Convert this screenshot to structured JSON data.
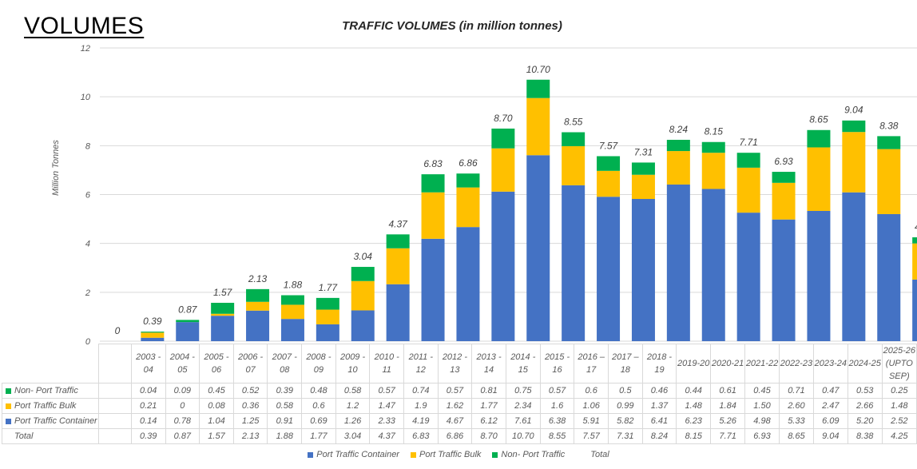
{
  "heading": "VOLUMES",
  "chart_data": {
    "type": "bar",
    "stacked": true,
    "title": "TRAFFIC VOLUMES (in million tonnes)",
    "ylabel": "Million Tonnes",
    "xlabel": "",
    "ylim": [
      0,
      12
    ],
    "yticks": [
      0,
      2,
      4,
      6,
      8,
      10,
      12
    ],
    "grid": true,
    "legend_position": "bottom",
    "categories": [
      "",
      "2003 - 04",
      "2004 - 05",
      "2005 - 06",
      "2006 - 07",
      "2007 - 08",
      "2008 - 09",
      "2009 - 10",
      "2010 - 11",
      "2011 - 12",
      "2012 - 13",
      "2013 - 14",
      "2014 - 15",
      "2015 - 16",
      "2016 – 17",
      "2017 – 18",
      "2018 - 19",
      "2019-20",
      "2020-21",
      "2021-22",
      "2022-23",
      "2023-24",
      "2024-25",
      "2025-26 (UPTO SEP)"
    ],
    "series": [
      {
        "name": "Port Traffic Container",
        "color": "#4472C4",
        "values": [
          null,
          0.14,
          0.78,
          1.04,
          1.25,
          0.91,
          0.69,
          1.26,
          2.33,
          4.19,
          4.67,
          6.12,
          7.61,
          6.38,
          5.91,
          5.82,
          6.41,
          6.23,
          5.26,
          4.98,
          5.33,
          6.09,
          5.2,
          2.52
        ],
        "labels": [
          "",
          "0.14",
          "0.78",
          "1.04",
          "1.25",
          "0.91",
          "0.69",
          "1.26",
          "2.33",
          "4.19",
          "4.67",
          "6.12",
          "7.61",
          "6.38",
          "5.91",
          "5.82",
          "6.41",
          "6.23",
          "5.26",
          "4.98",
          "5.33",
          "6.09",
          "5.20",
          "2.52"
        ]
      },
      {
        "name": "Port Traffic Bulk",
        "color": "#FFC000",
        "values": [
          null,
          0.21,
          0,
          0.08,
          0.36,
          0.58,
          0.6,
          1.2,
          1.47,
          1.9,
          1.62,
          1.77,
          2.34,
          1.6,
          1.06,
          0.99,
          1.37,
          1.48,
          1.84,
          1.5,
          2.6,
          2.47,
          2.66,
          1.48
        ],
        "labels": [
          "",
          "0.21",
          "0",
          "0.08",
          "0.36",
          "0.58",
          "0.6",
          "1.2",
          "1.47",
          "1.9",
          "1.62",
          "1.77",
          "2.34",
          "1.6",
          "1.06",
          "0.99",
          "1.37",
          "1.48",
          "1.84",
          "1.50",
          "2.60",
          "2.47",
          "2.66",
          "1.48"
        ]
      },
      {
        "name": "Non- Port Traffic",
        "color": "#00B050",
        "values": [
          null,
          0.04,
          0.09,
          0.45,
          0.52,
          0.39,
          0.48,
          0.58,
          0.57,
          0.74,
          0.57,
          0.81,
          0.75,
          0.57,
          0.6,
          0.5,
          0.46,
          0.44,
          0.61,
          0.45,
          0.71,
          0.47,
          0.53,
          0.25
        ],
        "labels": [
          "",
          "0.04",
          "0.09",
          "0.45",
          "0.52",
          "0.39",
          "0.48",
          "0.58",
          "0.57",
          "0.74",
          "0.57",
          "0.81",
          "0.75",
          "0.57",
          "0.6",
          "0.5",
          "0.46",
          "0.44",
          "0.61",
          "0.45",
          "0.71",
          "0.47",
          "0.53",
          "0.25"
        ]
      }
    ],
    "total": {
      "name": "Total",
      "values": [
        0,
        0.39,
        0.87,
        1.57,
        2.13,
        1.88,
        1.77,
        3.04,
        4.37,
        6.83,
        6.86,
        8.7,
        10.7,
        8.55,
        7.57,
        7.31,
        8.24,
        8.15,
        7.71,
        6.93,
        8.65,
        9.04,
        8.38,
        4.25
      ],
      "labels": [
        "0",
        "0.39",
        "0.87",
        "1.57",
        "2.13",
        "1.88",
        "1.77",
        "3.04",
        "4.37",
        "6.83",
        "6.86",
        "8.70",
        "10.70",
        "8.55",
        "7.57",
        "7.31",
        "8.24",
        "8.15",
        "7.71",
        "6.93",
        "8.65",
        "9.04",
        "8.38",
        "4.25"
      ]
    }
  }
}
